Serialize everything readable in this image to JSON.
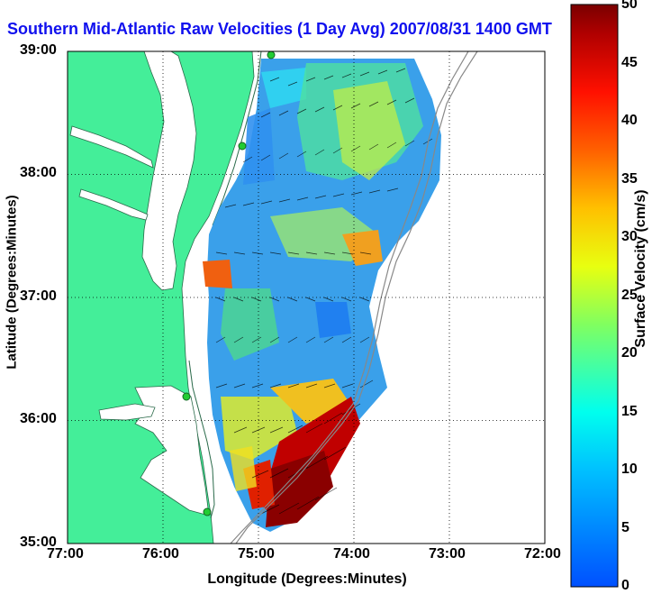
{
  "title": "Southern Mid-Atlantic Raw Velocities (1 Day Avg) 2007/08/31 1400 GMT",
  "axes": {
    "xlabel": "Longitude (Degrees:Minutes)",
    "ylabel": "Latitude (Degrees:Minutes)",
    "xticks": [
      "77:00",
      "76:00",
      "75:00",
      "74:00",
      "73:00",
      "72:00"
    ],
    "yticks": [
      "39:00",
      "38:00",
      "37:00",
      "36:00",
      "35:00"
    ]
  },
  "colorbar": {
    "label": "Surface Velocity (cm/s)",
    "ticks": [
      "50",
      "45",
      "40",
      "35",
      "30",
      "25",
      "20",
      "15",
      "10",
      "5",
      "0"
    ]
  },
  "colors": {
    "land": "#44ee99",
    "water": "#ffffff",
    "title": "#1010ee",
    "station": "#22cc33"
  }
}
